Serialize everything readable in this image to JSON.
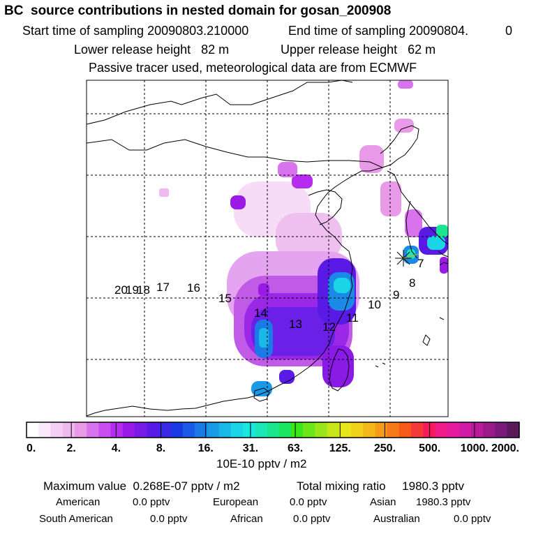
{
  "header": {
    "title": "BC  source contributions in nested domain for gosan_200908",
    "start_label": "Start time of sampling 20090803.210000",
    "end_label": "End time of sampling 20090804.",
    "end_suffix": "0",
    "lower_release": "Lower release height   82 m",
    "upper_release": "Upper release height   62 m",
    "tracer_info": "Passive tracer used, meteorological data are from ECMWF"
  },
  "map": {
    "trajectory_labels": [
      "7",
      "8",
      "9",
      "10",
      "11",
      "12",
      "13",
      "14",
      "15",
      "16",
      "17",
      "18",
      "19",
      "20"
    ],
    "receptor_marker": "star-icon"
  },
  "colorbar": {
    "tick_labels": [
      "0.",
      "2.",
      "4.",
      "8.",
      "16.",
      "31.",
      "63.",
      "125.",
      "250.",
      "500.",
      "1000.",
      "2000."
    ],
    "unit_label": "10E-10 pptv / m2",
    "colors": [
      "#ffffff",
      "#fbe8fb",
      "#f5d0f5",
      "#efb8ef",
      "#e89ae8",
      "#d873ed",
      "#c84ef0",
      "#b52cef",
      "#9a1ae8",
      "#7a1ae6",
      "#5a1ae6",
      "#3a2ae6",
      "#1a3ae6",
      "#1a5ae6",
      "#1a7ae6",
      "#1a9ae6",
      "#1ab8e6",
      "#1ad5e6",
      "#1ae6e0",
      "#1ae6b8",
      "#1ae690",
      "#1ae660",
      "#3ae61a",
      "#6ae61a",
      "#9ae61a",
      "#c8e61a",
      "#e6e61a",
      "#f0d21a",
      "#f5b81a",
      "#f59a1a",
      "#f57a1a",
      "#f55a1a",
      "#f53a3a",
      "#f51a5a",
      "#f01a8a",
      "#e61aa0",
      "#d21aa8",
      "#b81a9a",
      "#9a1a8a",
      "#7a1a7a",
      "#5a1a5a"
    ]
  },
  "summary": {
    "maximum": "Maximum value  0.268E-07 pptv / m2",
    "total": "Total mixing ratio     1980.3 pptv",
    "rows": [
      [
        {
          "label": "American",
          "value": "0.0 pptv"
        },
        {
          "label": "European",
          "value": "0.0 pptv"
        },
        {
          "label": "Asian",
          "value": "1980.3 pptv"
        }
      ],
      [
        {
          "label": "South American",
          "value": "0.0 pptv"
        },
        {
          "label": "African",
          "value": "0.0 pptv"
        },
        {
          "label": "Australian",
          "value": "0.0 pptv"
        }
      ]
    ]
  },
  "chart_data": {
    "type": "heatmap",
    "title": "BC  source contributions in nested domain for gosan_200908",
    "colorscale_ticks": [
      0,
      2,
      4,
      8,
      16,
      31,
      63,
      125,
      250,
      500,
      1000,
      2000
    ],
    "colorscale_unit": "10E-10 pptv / m2",
    "maximum_value": "0.268E-07 pptv / m2",
    "total_mixing_ratio_pptv": 1980.3,
    "source_contributions_pptv": {
      "American": 0.0,
      "European": 0.0,
      "Asian": 1980.3,
      "South American": 0.0,
      "African": 0.0,
      "Australian": 0.0
    },
    "trajectory_points": [
      "7",
      "8",
      "9",
      "10",
      "11",
      "12",
      "13",
      "14",
      "15",
      "16",
      "17",
      "18",
      "19",
      "20"
    ]
  }
}
